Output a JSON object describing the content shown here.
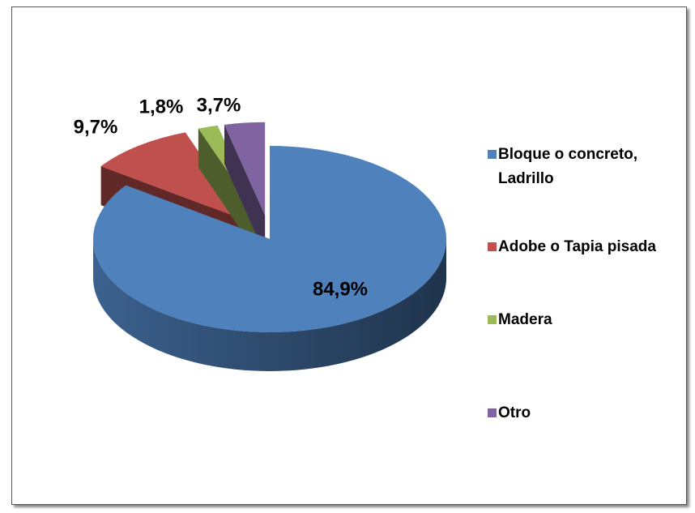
{
  "chart_data": {
    "type": "pie",
    "categories": [
      "Bloque o concreto, Ladrillo",
      "Adobe o Tapia pisada",
      "Madera",
      "Otro"
    ],
    "values": [
      84.9,
      9.7,
      1.8,
      3.7
    ],
    "value_labels": [
      "84,9%",
      "9,7%",
      "1,8%",
      "3,7%"
    ],
    "colors": [
      "#4f81bd",
      "#c0504d",
      "#9bbb59",
      "#8064a2"
    ],
    "legend": "right"
  }
}
